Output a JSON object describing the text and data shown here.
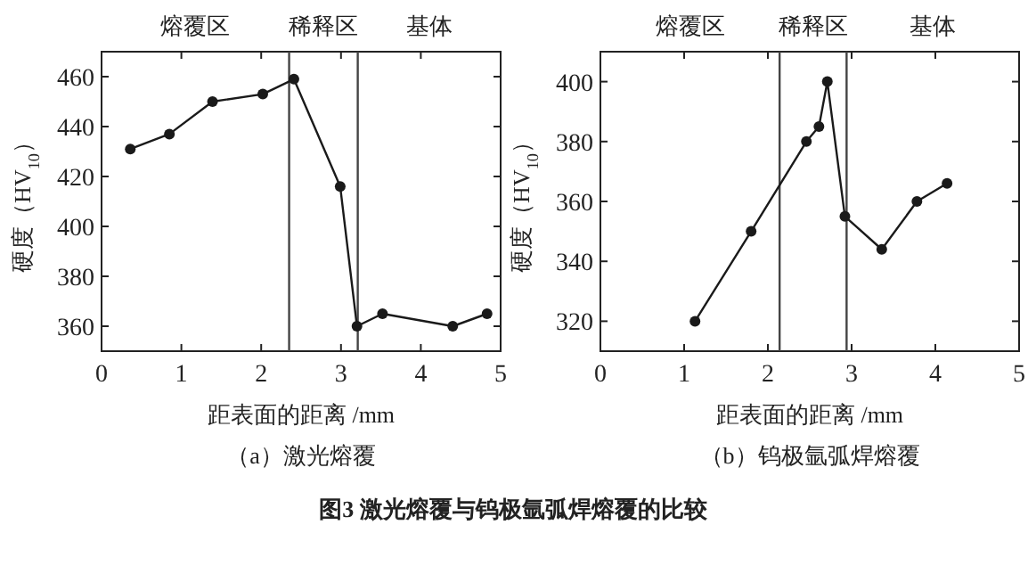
{
  "chart_data": [
    {
      "type": "line",
      "title": "（a）激光熔覆",
      "xlabel": "距表面的距离 /mm",
      "ylabel": "硬度（HV$_{10}$）",
      "x": [
        0.36,
        0.85,
        1.39,
        2.02,
        2.41,
        2.99,
        3.2,
        3.52,
        4.4,
        4.83
      ],
      "values": [
        431,
        437,
        450,
        453,
        459,
        416,
        360,
        365,
        360,
        365
      ],
      "color": "#1a1a1a",
      "marker": "circle",
      "line_style": "solid",
      "xlim": [
        0,
        5
      ],
      "xticks": [
        0,
        1,
        2,
        3,
        4,
        5
      ],
      "ylim": [
        350,
        470
      ],
      "yticks": [
        360,
        380,
        400,
        420,
        440,
        460
      ],
      "ref_lines": [
        {
          "axis": "x",
          "value": 2.35
        },
        {
          "axis": "x",
          "value": 3.21
        }
      ],
      "annotations": [
        "熔覆区",
        "稀释区",
        "基体",
        "图3 激光熔覆与钨极氩弧焊熔覆的比较"
      ]
    },
    {
      "type": "line",
      "title": "（b）钨极氩弧焊熔覆",
      "xlabel": "距表面的距离 /mm",
      "ylabel": "硬度（HV$_{10}$）",
      "x": [
        1.13,
        1.8,
        2.46,
        2.61,
        2.71,
        2.92,
        3.36,
        3.78,
        4.14
      ],
      "values": [
        320,
        350,
        380,
        385,
        400,
        355,
        344,
        360,
        366
      ],
      "color": "#1a1a1a",
      "marker": "circle",
      "line_style": "solid",
      "xlim": [
        0,
        5
      ],
      "xticks": [
        0,
        1,
        2,
        3,
        4,
        5
      ],
      "ylim": [
        310,
        410
      ],
      "yticks": [
        320,
        340,
        360,
        380,
        400
      ],
      "ref_lines": [
        {
          "axis": "x",
          "value": 2.14
        },
        {
          "axis": "x",
          "value": 2.94
        }
      ],
      "annotations": [
        "熔覆区",
        "稀释区",
        "基体"
      ]
    }
  ]
}
